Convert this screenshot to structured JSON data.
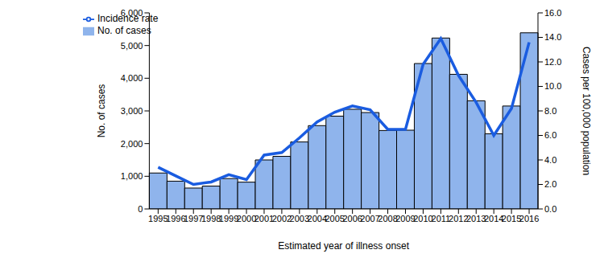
{
  "chart_data": {
    "type": "bar",
    "x_label": "Estimated year of illness onset",
    "y_label": "No. of cases",
    "y2_label": "Cases per 100,000 population",
    "categories": [
      "1995",
      "1996",
      "1997",
      "1998",
      "1999",
      "2000",
      "2001",
      "2002",
      "2003",
      "2004",
      "2005",
      "2006",
      "2007",
      "2008",
      "2009",
      "2010",
      "2011",
      "2012",
      "2013",
      "2014",
      "2015",
      "2016"
    ],
    "series": [
      {
        "name": "No. of cases",
        "type": "bar",
        "color": "#8fb4ec",
        "values": [
          1100,
          850,
          640,
          700,
          930,
          820,
          1500,
          1610,
          2050,
          2550,
          2840,
          3050,
          2950,
          2400,
          2410,
          4450,
          5230,
          4120,
          3310,
          2300,
          3150,
          5390
        ]
      },
      {
        "name": "Incidence rate",
        "type": "line",
        "axis": "y2",
        "color": "#1a5ce0",
        "values": [
          3.4,
          2.7,
          2.0,
          2.2,
          2.8,
          2.4,
          4.4,
          4.6,
          5.8,
          7.1,
          7.9,
          8.4,
          8.1,
          6.5,
          6.5,
          11.8,
          13.9,
          10.9,
          8.7,
          6.0,
          8.2,
          13.6
        ]
      }
    ],
    "ylim": [
      0,
      6000
    ],
    "yticks": [
      0,
      {
        "value": 1000,
        "label": "1,000"
      },
      {
        "value": 2000,
        "label": "2,000"
      },
      {
        "value": 3000,
        "label": "3,000"
      },
      {
        "value": 4000,
        "label": "4,000"
      },
      {
        "value": 5000,
        "label": "5,000"
      },
      {
        "value": 6000,
        "label": "6,000"
      }
    ],
    "y2lim": [
      0,
      16
    ],
    "y2ticks": [
      {
        "value": 0,
        "label": "0.0"
      },
      {
        "value": 2,
        "label": "2.0"
      },
      {
        "value": 4,
        "label": "4.0"
      },
      {
        "value": 6,
        "label": "6.0"
      },
      {
        "value": 8,
        "label": "8.0"
      },
      {
        "value": 10,
        "label": "10.0"
      },
      {
        "value": 12,
        "label": "12.0"
      },
      {
        "value": 14,
        "label": "14.0"
      },
      {
        "value": 16,
        "label": "16.0"
      }
    ],
    "legend": "upper left"
  }
}
